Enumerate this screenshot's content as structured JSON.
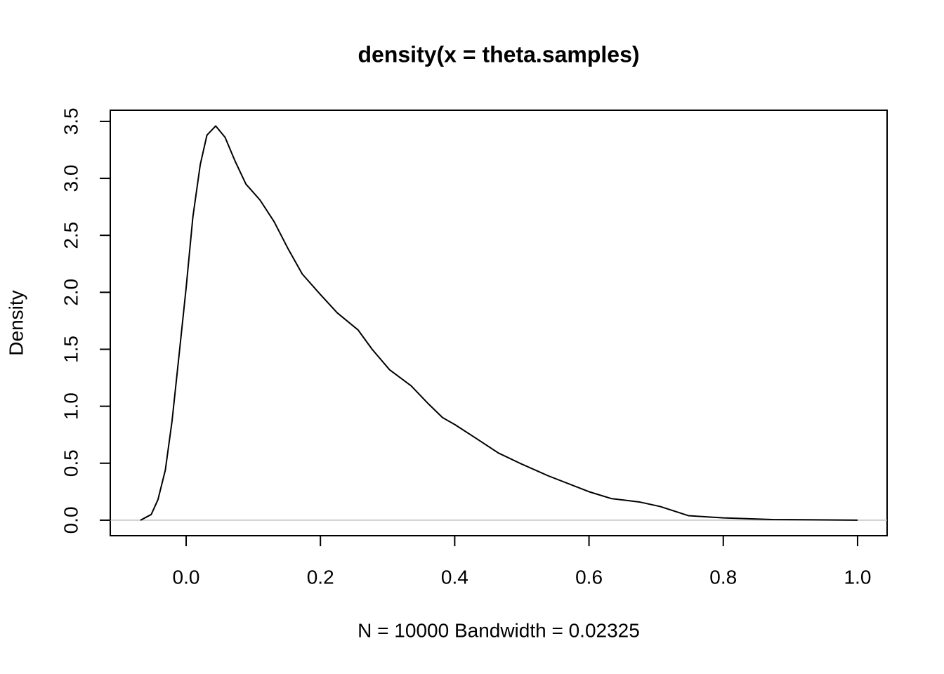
{
  "chart_data": {
    "type": "line",
    "title": "density(x = theta.samples)",
    "xlabel": "N = 10000   Bandwidth = 0.02325",
    "ylabel": "Density",
    "x": [
      -0.068,
      -0.052,
      -0.042,
      -0.031,
      -0.021,
      -0.01,
      0.0,
      0.01,
      0.021,
      0.031,
      0.044,
      0.058,
      0.073,
      0.089,
      0.11,
      0.131,
      0.152,
      0.173,
      0.2,
      0.225,
      0.256,
      0.277,
      0.303,
      0.335,
      0.361,
      0.382,
      0.4,
      0.434,
      0.465,
      0.497,
      0.539,
      0.6,
      0.633,
      0.675,
      0.706,
      0.748,
      0.8,
      0.873,
      1.0
    ],
    "values": [
      0,
      0.05,
      0.18,
      0.44,
      0.87,
      1.48,
      2.04,
      2.66,
      3.12,
      3.38,
      3.46,
      3.36,
      3.15,
      2.95,
      2.81,
      2.62,
      2.38,
      2.16,
      1.98,
      1.82,
      1.67,
      1.5,
      1.32,
      1.18,
      1.02,
      0.9,
      0.84,
      0.71,
      0.59,
      0.5,
      0.39,
      0.25,
      0.19,
      0.16,
      0.12,
      0.04,
      0.02,
      0.006,
      0
    ],
    "color": "#000000",
    "xlim": [
      -0.113,
      1.044
    ],
    "ylim": [
      -0.136,
      3.598
    ],
    "xticks": [
      {
        "value": 0,
        "label": "0.0"
      },
      0.2,
      0.4,
      0.6,
      0.8,
      {
        "value": 1,
        "label": "1.0"
      }
    ],
    "yticks": [
      {
        "value": 0,
        "label": "0.0"
      },
      0.5,
      {
        "value": 1,
        "label": "1.0"
      },
      1.5,
      {
        "value": 2,
        "label": "2.0"
      },
      2.5,
      {
        "value": 3,
        "label": "3.0"
      },
      3.5
    ],
    "zero_line": true
  }
}
